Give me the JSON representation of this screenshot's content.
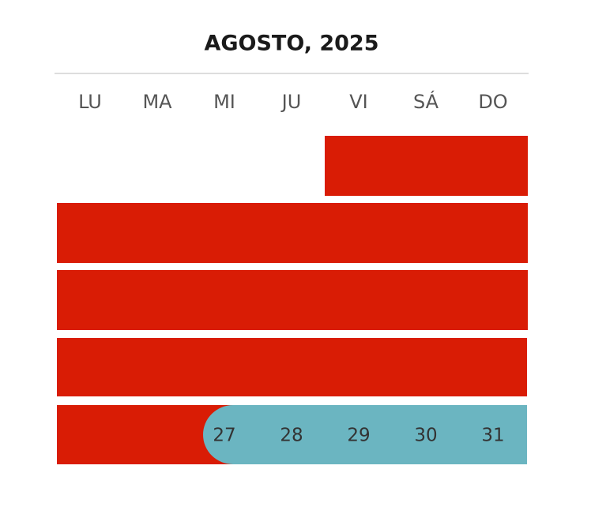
{
  "header": {
    "title": "AGOSTO, 2025"
  },
  "weekdays": [
    "LU",
    "MA",
    "MI",
    "JU",
    "VI",
    "SÁ",
    "DO"
  ],
  "days": [
    "27",
    "28",
    "29",
    "30",
    "31"
  ]
}
